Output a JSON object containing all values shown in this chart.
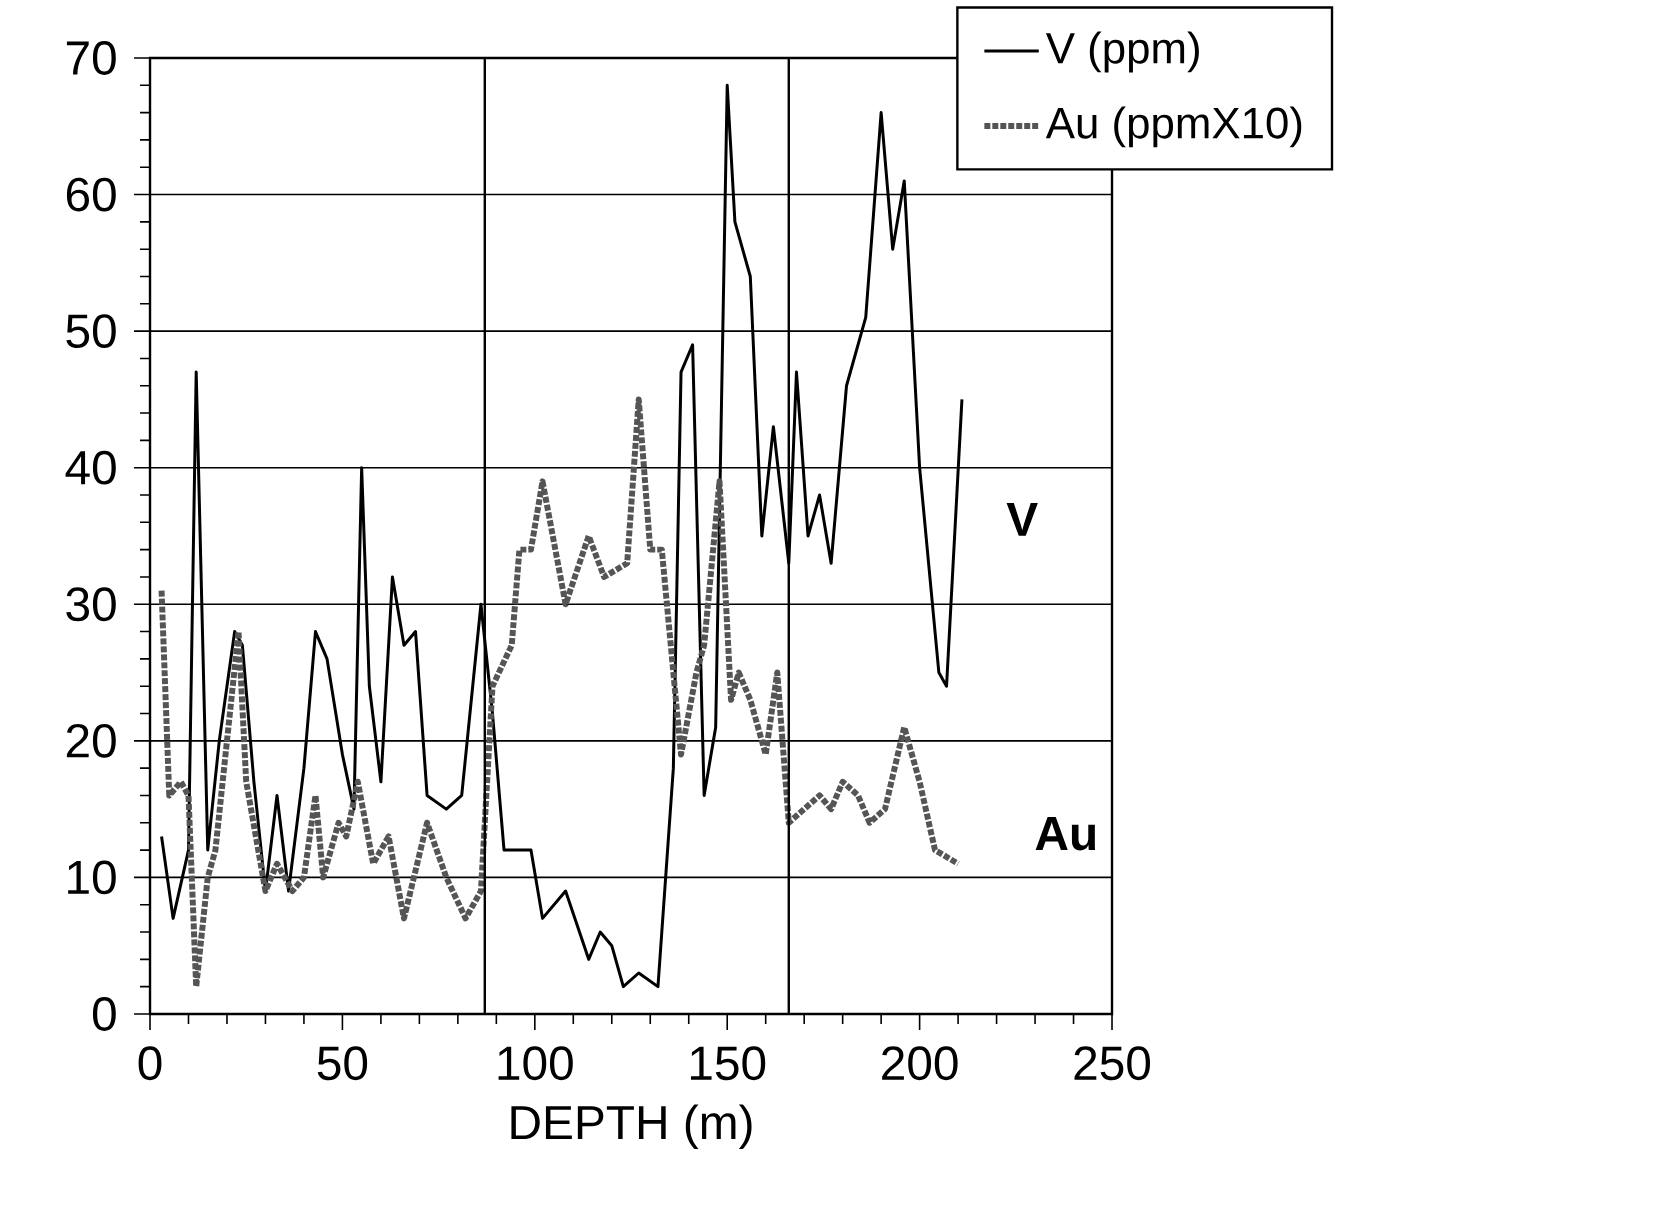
{
  "chart_data": {
    "type": "line",
    "xlabel": "DEPTH (m)",
    "xlim": [
      0,
      250
    ],
    "xticks": [
      0,
      50,
      100,
      150,
      200,
      250
    ],
    "ylim": [
      0,
      70
    ],
    "yticks": [
      0,
      10,
      20,
      30,
      40,
      50,
      60,
      70
    ],
    "grid": "y",
    "legend": "top right",
    "marker": "none",
    "series": [
      {
        "name": "V (ppm)",
        "color": "#000000",
        "line_style": "solid",
        "x": [
          3,
          6,
          10,
          12,
          15,
          18,
          22,
          24,
          27,
          30,
          33,
          36,
          40,
          43,
          46,
          50,
          53,
          55,
          57,
          60,
          63,
          66,
          69,
          72,
          77,
          81,
          86,
          89,
          92,
          95,
          99,
          102,
          108,
          114,
          117,
          120,
          123,
          127,
          132,
          136,
          138,
          141,
          144,
          147,
          150,
          152,
          156,
          159,
          162,
          166,
          168,
          171,
          174,
          177,
          181,
          186,
          190,
          193,
          196,
          200,
          205,
          207,
          211
        ],
        "values": [
          13,
          7,
          12,
          47,
          12,
          20,
          28,
          27,
          17,
          9,
          16,
          9,
          18,
          28,
          26,
          19,
          15,
          40,
          24,
          17,
          32,
          27,
          28,
          16,
          15,
          16,
          30,
          22,
          12,
          12,
          12,
          7,
          9,
          4,
          6,
          5,
          2,
          3,
          2,
          18,
          47,
          49,
          16,
          21,
          68,
          58,
          54,
          35,
          43,
          33,
          47,
          35,
          38,
          33,
          46,
          51,
          66,
          56,
          61,
          40,
          25,
          24,
          45
        ]
      },
      {
        "name": "Au (ppmX10)",
        "color": "#555555",
        "line_style": "dotted",
        "x": [
          3,
          5,
          8,
          10,
          12,
          15,
          17,
          20,
          23,
          25,
          30,
          33,
          37,
          40,
          43,
          45,
          49,
          51,
          54,
          58,
          62,
          66,
          72,
          77,
          82,
          86,
          89,
          94,
          96,
          99,
          102,
          108,
          114,
          118,
          124,
          127,
          130,
          133,
          138,
          142,
          144,
          148,
          151,
          153,
          156,
          160,
          163,
          166,
          170,
          174,
          177,
          180,
          184,
          187,
          191,
          196,
          200,
          204,
          210
        ],
        "values": [
          31,
          16,
          17,
          16,
          2,
          10,
          12,
          20,
          28,
          17,
          9,
          11,
          9,
          10,
          16,
          10,
          14,
          13,
          17,
          11,
          13,
          7,
          14,
          10,
          7,
          9,
          24,
          27,
          34,
          34,
          39,
          30,
          35,
          32,
          33,
          45,
          34,
          34,
          19,
          25,
          27,
          39,
          23,
          25,
          23,
          19,
          25,
          14,
          15,
          16,
          15,
          17,
          16,
          14,
          15,
          21,
          17,
          12,
          11
        ]
      }
    ],
    "ref_lines": [
      {
        "axis": "x",
        "value": 87,
        "color": "#000000"
      },
      {
        "axis": "x",
        "value": 166,
        "color": "#000000"
      }
    ],
    "annotations": [
      "V",
      "Au"
    ]
  }
}
